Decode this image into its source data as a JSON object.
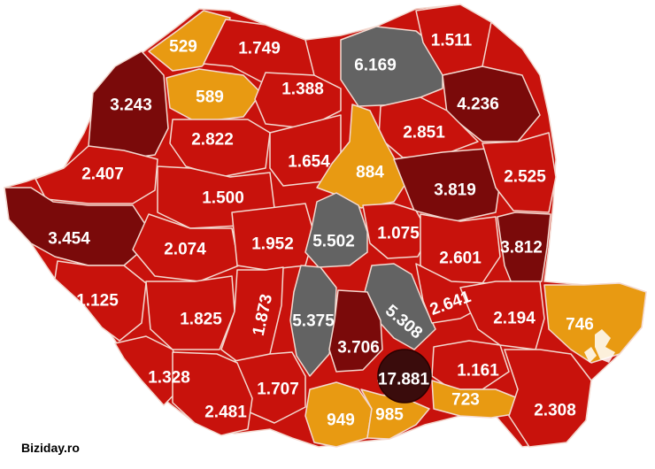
{
  "credit": "Biziday.ro",
  "colors": {
    "red": "#c8120c",
    "dark_red": "#7a0a0a",
    "orange": "#e89a12",
    "gray": "#636363",
    "black": "#3a0c0c",
    "border": "#f3d9d0"
  },
  "counties": [
    {
      "value": "529",
      "level": "orange"
    },
    {
      "value": "1.749",
      "level": "red"
    },
    {
      "value": "6.169",
      "level": "gray"
    },
    {
      "value": "1.511",
      "level": "red"
    },
    {
      "value": "3.243",
      "level": "dark_red"
    },
    {
      "value": "589",
      "level": "orange"
    },
    {
      "value": "1.388",
      "level": "red"
    },
    {
      "value": "4.236",
      "level": "dark_red"
    },
    {
      "value": "2.822",
      "level": "red"
    },
    {
      "value": "2.851",
      "level": "red"
    },
    {
      "value": "1.654",
      "level": "red"
    },
    {
      "value": "884",
      "level": "orange"
    },
    {
      "value": "2.407",
      "level": "red"
    },
    {
      "value": "3.819",
      "level": "dark_red"
    },
    {
      "value": "2.525",
      "level": "red"
    },
    {
      "value": "1.500",
      "level": "red"
    },
    {
      "value": "3.454",
      "level": "dark_red"
    },
    {
      "value": "2.074",
      "level": "red"
    },
    {
      "value": "1.952",
      "level": "red"
    },
    {
      "value": "5.502",
      "level": "gray"
    },
    {
      "value": "1.075",
      "level": "red"
    },
    {
      "value": "2.601",
      "level": "red"
    },
    {
      "value": "3.812",
      "level": "dark_red"
    },
    {
      "value": "1.125",
      "level": "red"
    },
    {
      "value": "1.825",
      "level": "red"
    },
    {
      "value": "1.873",
      "level": "red"
    },
    {
      "value": "5.375",
      "level": "gray"
    },
    {
      "value": "5.308",
      "level": "gray"
    },
    {
      "value": "2.641",
      "level": "red"
    },
    {
      "value": "2.194",
      "level": "red"
    },
    {
      "value": "746",
      "level": "orange"
    },
    {
      "value": "3.706",
      "level": "dark_red"
    },
    {
      "value": "1.328",
      "level": "red"
    },
    {
      "value": "1.707",
      "level": "red"
    },
    {
      "value": "17.881",
      "level": "black"
    },
    {
      "value": "1.161",
      "level": "red"
    },
    {
      "value": "723",
      "level": "orange"
    },
    {
      "value": "2.481",
      "level": "red"
    },
    {
      "value": "949",
      "level": "orange"
    },
    {
      "value": "985",
      "level": "orange"
    },
    {
      "value": "2.308",
      "level": "red"
    }
  ]
}
